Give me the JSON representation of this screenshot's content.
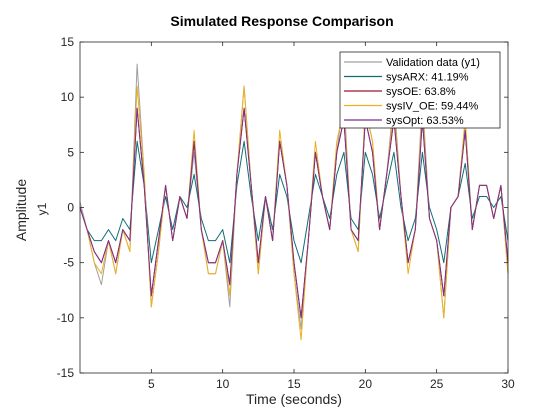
{
  "chart_data": {
    "type": "line",
    "title": "Simulated Response Comparison",
    "xlabel": "Time (seconds)",
    "ylabel": "Amplitude",
    "output_label": "y1",
    "xlim": [
      0,
      30
    ],
    "ylim": [
      -15,
      15
    ],
    "xticks": [
      "5",
      "10",
      "15",
      "20",
      "25",
      "30"
    ],
    "yticks": [
      "-15",
      "-10",
      "-5",
      "0",
      "5",
      "10",
      "15"
    ],
    "legend_position": "top-right",
    "grid": false,
    "x": [
      0,
      0.5,
      1,
      1.5,
      2,
      2.5,
      3,
      3.5,
      4,
      4.5,
      5,
      5.5,
      6,
      6.5,
      7,
      7.5,
      8,
      8.5,
      9,
      9.5,
      10,
      10.5,
      11,
      11.5,
      12,
      12.5,
      13,
      13.5,
      14,
      14.5,
      15,
      15.5,
      16,
      16.5,
      17,
      17.5,
      18,
      18.5,
      19,
      19.5,
      20,
      20.5,
      21,
      21.5,
      22,
      22.5,
      23,
      23.5,
      24,
      24.5,
      25,
      25.5,
      26,
      26.5,
      27,
      27.5,
      28,
      28.5,
      29,
      29.5,
      30
    ],
    "series": [
      {
        "name": "Validation data (y1)",
        "color": "#a0a0a0",
        "values": [
          0.5,
          -2,
          -5,
          -7,
          -3,
          -6,
          -2,
          -4,
          13,
          3,
          -9,
          -4,
          2,
          -3,
          1,
          -1,
          5,
          -2,
          -6,
          -6,
          -3,
          -9,
          3,
          11,
          2,
          -6,
          1,
          -3,
          6,
          2,
          -6,
          -11,
          -3,
          5,
          1,
          -2,
          5,
          10,
          -2,
          -4,
          9,
          6,
          -2,
          3,
          10,
          1,
          -5,
          -2,
          10,
          -1,
          -3,
          -10,
          0,
          1,
          8,
          -2,
          2,
          2,
          -1,
          2,
          -6
        ]
      },
      {
        "name": "sysARX: 41.19%",
        "color": "#0f6e73",
        "values": [
          0,
          -2,
          -3,
          -3,
          -2,
          -3,
          -1,
          -2,
          6,
          2,
          -5,
          -2,
          1,
          -2,
          1,
          0,
          3,
          -1,
          -3,
          -3,
          -2,
          -5,
          2,
          6,
          1,
          -3,
          1,
          -2,
          3,
          1,
          -3,
          -5,
          -1,
          3,
          1,
          -1,
          3,
          5,
          -1,
          -2,
          5,
          3,
          -1,
          2,
          5,
          0,
          -3,
          -1,
          5,
          0,
          -2,
          -5,
          0,
          1,
          4,
          -1,
          1,
          1,
          0,
          1,
          -3
        ]
      },
      {
        "name": "sysOE: 63.8%",
        "color": "#a2142f",
        "values": [
          0,
          -2,
          -4,
          -5,
          -3,
          -5,
          -2,
          -3,
          9,
          2,
          -8,
          -3,
          2,
          -3,
          1,
          -1,
          6,
          -2,
          -5,
          -5,
          -3,
          -7,
          3,
          9,
          2,
          -5,
          1,
          -3,
          6,
          2,
          -5,
          -10,
          -3,
          5,
          1,
          -2,
          5,
          8,
          -2,
          -3,
          8,
          5,
          -2,
          3,
          8,
          1,
          -5,
          -2,
          8,
          -1,
          -3,
          -8,
          0,
          1,
          7,
          -2,
          2,
          2,
          -1,
          2,
          -5
        ]
      },
      {
        "name": "sysIV_OE:  59.44%",
        "color": "#edb120",
        "values": [
          0,
          -2,
          -5,
          -6,
          -3,
          -6,
          -2,
          -4,
          11,
          3,
          -9,
          -4,
          2,
          -3,
          1,
          -1,
          7,
          -2,
          -6,
          -6,
          -3,
          -8,
          3,
          11,
          2,
          -6,
          1,
          -3,
          7,
          2,
          -6,
          -12,
          -3,
          6,
          1,
          -2,
          6,
          9,
          -2,
          -4,
          9,
          6,
          -2,
          3,
          9,
          1,
          -6,
          -2,
          9,
          -1,
          -3,
          -10,
          0,
          1,
          8,
          -2,
          2,
          2,
          -1,
          2,
          -6
        ]
      },
      {
        "name": "sysOpt: 63.53%",
        "color": "#7e2f8e",
        "values": [
          0,
          -2,
          -4,
          -5,
          -3,
          -5,
          -2,
          -3,
          9,
          2,
          -8,
          -3,
          2,
          -3,
          1,
          -1,
          6,
          -2,
          -5,
          -5,
          -3,
          -7,
          3,
          9,
          2,
          -5,
          1,
          -3,
          6,
          2,
          -5,
          -10,
          -3,
          5,
          1,
          -2,
          5,
          8,
          -2,
          -3,
          8,
          5,
          -2,
          3,
          8,
          1,
          -5,
          -2,
          8,
          -1,
          -3,
          -8,
          0,
          1,
          7,
          -2,
          2,
          2,
          -1,
          2,
          -5
        ]
      }
    ]
  }
}
